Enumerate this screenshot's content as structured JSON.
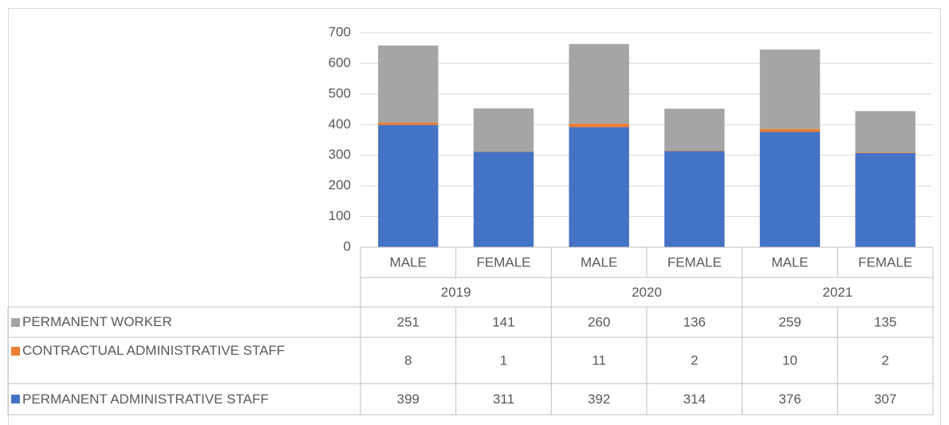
{
  "chart_data": {
    "type": "bar",
    "stacked": true,
    "categories": [
      "MALE",
      "FEMALE",
      "MALE",
      "FEMALE",
      "MALE",
      "FEMALE"
    ],
    "groups": [
      "2019",
      "2020",
      "2021"
    ],
    "series": [
      {
        "name": "PERMANENT ADMINISTRATIVE STAFF",
        "color": "#4472c4",
        "values": [
          399,
          311,
          392,
          314,
          376,
          307
        ]
      },
      {
        "name": "CONTRACTUAL ADMINISTRATIVE STAFF",
        "color": "#ed7d31",
        "values": [
          8,
          1,
          11,
          2,
          10,
          2
        ]
      },
      {
        "name": "PERMANENT WORKER",
        "color": "#a5a5a5",
        "values": [
          251,
          141,
          260,
          136,
          259,
          135
        ]
      }
    ],
    "ylim": [
      0,
      700
    ],
    "yticks": [
      0,
      100,
      200,
      300,
      400,
      500,
      600,
      700
    ],
    "grid": true,
    "data_table": true
  }
}
